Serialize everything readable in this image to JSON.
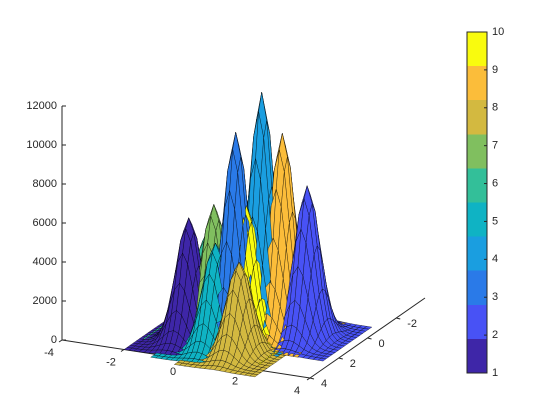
{
  "chart_data": {
    "type": "surface3d",
    "xlim": [
      -4,
      4
    ],
    "xticks": [
      -4,
      -2,
      0,
      2,
      4
    ],
    "ylim": [
      -4,
      4
    ],
    "yticks": [
      -2,
      0,
      2,
      4
    ],
    "zlim": [
      0,
      12000
    ],
    "zticks": [
      0,
      2000,
      4000,
      6000,
      8000,
      10000,
      12000
    ],
    "clim": [
      1,
      10
    ],
    "cticks": [
      1,
      2,
      3,
      4,
      5,
      6,
      7,
      8,
      9,
      10
    ],
    "colormap": [
      "#3e26a8",
      "#4852f5",
      "#2a7ae8",
      "#1a9ee0",
      "#0fb3c4",
      "#33bf99",
      "#80bf5f",
      "#d3b940",
      "#fbbd3a",
      "#f9fb0e"
    ],
    "surfaces": [
      {
        "color_index": 1,
        "x": -0.7,
        "y": 2.3,
        "peak": 6200
      },
      {
        "color_index": 7,
        "x": -0.1,
        "y": 1.85,
        "peak": 6800
      },
      {
        "color_index": 6,
        "x": -0.6,
        "y": 1.2,
        "peak": 5000
      },
      {
        "color_index": 3,
        "x": 0.7,
        "y": 2.05,
        "peak": 10800
      },
      {
        "color_index": 4,
        "x": 1.05,
        "y": 1.0,
        "peak": 12400
      },
      {
        "color_index": 9,
        "x": 1.6,
        "y": 0.75,
        "peak": 10300
      },
      {
        "color_index": 2,
        "x": 2.4,
        "y": 0.75,
        "peak": 7800
      },
      {
        "color_index": 10,
        "x": 0.95,
        "y": 1.85,
        "peak": 7000
      },
      {
        "color_index": 5,
        "x": 0.3,
        "y": 2.6,
        "peak": 5300
      },
      {
        "color_index": 8,
        "x": 1.2,
        "y": 2.9,
        "peak": 4700
      }
    ]
  }
}
